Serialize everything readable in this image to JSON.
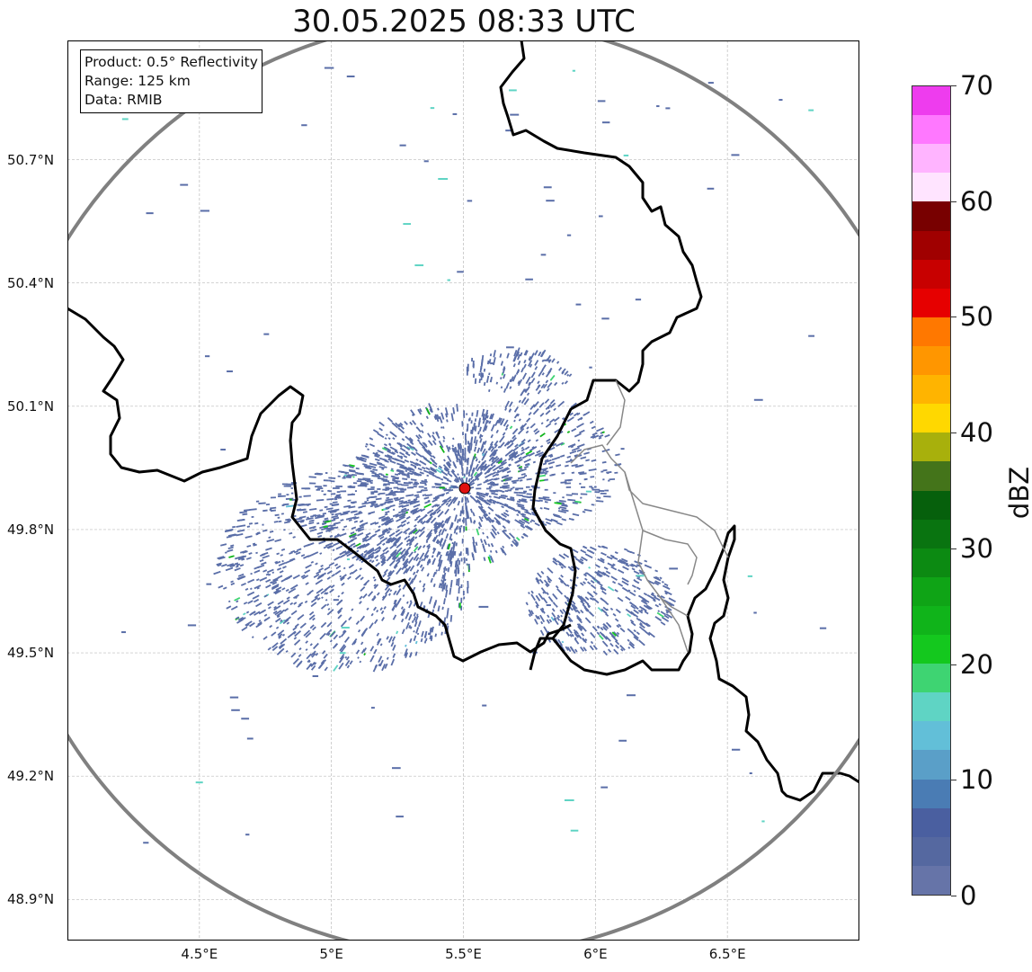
{
  "title": "30.05.2025 08:33 UTC",
  "info_box": {
    "line1": "Product: 0.5° Reflectivity",
    "line2": "Range: 125 km",
    "line3": "Data: RMIB"
  },
  "map": {
    "lat_labels": [
      "50.7°N",
      "50.4°N",
      "50.1°N",
      "49.8°N",
      "49.5°N",
      "49.2°N",
      "48.9°N"
    ],
    "lat_values": [
      50.7,
      50.4,
      50.1,
      49.8,
      49.5,
      49.2,
      48.9
    ],
    "lon_labels": [
      "4.5°E",
      "5°E",
      "5.5°E",
      "6°E",
      "6.5°E"
    ],
    "lon_values": [
      4.5,
      5.0,
      5.5,
      6.0,
      6.5
    ],
    "lon_range": [
      4.0,
      7.0
    ],
    "lat_range": [
      48.8,
      50.99
    ],
    "radar_site": {
      "lon": 5.505,
      "lat": 49.914
    },
    "range_ring_km": 125,
    "gridlines": true,
    "colors": {
      "border": "#000000",
      "admin_border": "#888888",
      "range_ring": "#808080",
      "radar_site": "#e01010",
      "echo_main": "#5a6ea8"
    }
  },
  "colorbar": {
    "label": "dBZ",
    "min": 0,
    "max": 70,
    "ticks": [
      "0",
      "10",
      "20",
      "30",
      "40",
      "50",
      "60",
      "70"
    ],
    "tick_values": [
      0,
      10,
      20,
      30,
      40,
      50,
      60,
      70
    ],
    "colors": [
      "#6674a8",
      "#5568a0",
      "#4a5fa0",
      "#4a7cb4",
      "#5a9fc8",
      "#62bfd8",
      "#5fd4c4",
      "#3ed472",
      "#14c81e",
      "#10b41a",
      "#0fa416",
      "#0c8a12",
      "#097410",
      "#06600c",
      "#44741a",
      "#a8b00c",
      "#ffd800",
      "#ffb400",
      "#ff9600",
      "#ff7800",
      "#e60000",
      "#c80000",
      "#a00000",
      "#780000",
      "#ffe4ff",
      "#ffb4ff",
      "#ff78ff",
      "#ee3cee"
    ]
  }
}
